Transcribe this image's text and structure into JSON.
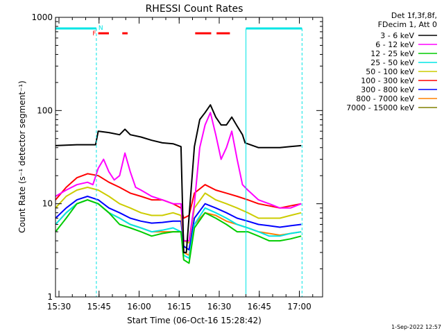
{
  "footer_timestamp": "1-Sep-2022 12:57",
  "legend": {
    "header": [
      "Det 1f,3f,8f,",
      "FDecim 1, Att 0"
    ]
  },
  "flags": {
    "flare_label": "F",
    "night_label": "N"
  },
  "colors": {
    "s1": "#000000",
    "s2": "#ff00ff",
    "s3": "#00cc00",
    "s4": "#00e5e5",
    "s5": "#cccc00",
    "s6": "#ff0000",
    "s7": "#0000ff",
    "s8": "#ff8000",
    "s9": "#808000",
    "flare_bar": "#ff0000",
    "night_bar": "#00e5e5"
  },
  "chart_data": {
    "type": "line",
    "title": "RHESSI Count Rates",
    "xlabel": "Start Time (06-Oct-16 15:28:42)",
    "ylabel": "Count Rate (s⁻¹ detector segment⁻¹)",
    "x_unit": "minutes after 15:28:42",
    "xlim": [
      0,
      100
    ],
    "ylim": [
      1,
      1000
    ],
    "y_scale": "log",
    "grid": false,
    "legend_position": "right",
    "x_ticks": [
      {
        "label": "15:30",
        "value": 1.3
      },
      {
        "label": "15:45",
        "value": 16.3
      },
      {
        "label": "16:00",
        "value": 31.3
      },
      {
        "label": "16:15",
        "value": 46.3
      },
      {
        "label": "16:30",
        "value": 61.3
      },
      {
        "label": "16:45",
        "value": 76.3
      },
      {
        "label": "17:00",
        "value": 91.3
      }
    ],
    "y_ticks": [
      {
        "label": "1",
        "value": 1
      },
      {
        "label": "10",
        "value": 10
      },
      {
        "label": "100",
        "value": 100
      },
      {
        "label": "1000",
        "value": 1000
      }
    ],
    "night_intervals": [
      [
        0,
        15.3
      ],
      [
        71.3,
        92.3
      ]
    ],
    "flare_intervals": [
      [
        16,
        20
      ],
      [
        25,
        27
      ],
      [
        52.3,
        58.3
      ],
      [
        60.3,
        65.3
      ]
    ],
    "series": [
      {
        "name": "3 - 6 keV",
        "color_key": "s1",
        "points": [
          [
            0,
            42
          ],
          [
            8,
            43
          ],
          [
            15,
            43
          ],
          [
            16,
            60
          ],
          [
            20,
            58
          ],
          [
            24,
            55
          ],
          [
            26,
            63
          ],
          [
            28,
            55
          ],
          [
            32,
            52
          ],
          [
            36,
            48
          ],
          [
            40,
            45
          ],
          [
            44,
            44
          ],
          [
            47,
            41
          ],
          [
            48,
            3
          ],
          [
            49,
            3
          ],
          [
            52,
            41
          ],
          [
            54,
            80
          ],
          [
            56,
            95
          ],
          [
            58,
            115
          ],
          [
            60,
            85
          ],
          [
            62,
            70
          ],
          [
            64,
            70
          ],
          [
            66,
            85
          ],
          [
            68,
            68
          ],
          [
            70,
            55
          ],
          [
            71,
            45
          ],
          [
            76,
            40
          ],
          [
            80,
            40
          ],
          [
            84,
            40
          ],
          [
            88,
            41
          ],
          [
            92,
            42
          ]
        ]
      },
      {
        "name": "6 - 12 keV",
        "color_key": "s2",
        "points": [
          [
            0,
            12
          ],
          [
            4,
            14
          ],
          [
            8,
            16
          ],
          [
            12,
            17
          ],
          [
            14,
            16
          ],
          [
            16,
            24
          ],
          [
            18,
            30
          ],
          [
            20,
            22
          ],
          [
            22,
            18
          ],
          [
            24,
            20
          ],
          [
            26,
            35
          ],
          [
            28,
            22
          ],
          [
            30,
            15
          ],
          [
            32,
            14
          ],
          [
            36,
            12
          ],
          [
            40,
            11
          ],
          [
            44,
            10
          ],
          [
            47,
            10
          ],
          [
            48,
            4
          ],
          [
            50,
            4
          ],
          [
            52,
            10
          ],
          [
            54,
            40
          ],
          [
            56,
            70
          ],
          [
            58,
            95
          ],
          [
            60,
            55
          ],
          [
            62,
            30
          ],
          [
            64,
            40
          ],
          [
            66,
            60
          ],
          [
            68,
            30
          ],
          [
            70,
            16
          ],
          [
            72,
            14
          ],
          [
            76,
            11
          ],
          [
            80,
            10
          ],
          [
            84,
            9
          ],
          [
            88,
            9
          ],
          [
            92,
            10
          ]
        ]
      },
      {
        "name": "12 - 25 keV",
        "color_key": "s3",
        "points": [
          [
            0,
            5
          ],
          [
            4,
            7
          ],
          [
            8,
            10
          ],
          [
            12,
            11
          ],
          [
            16,
            10
          ],
          [
            20,
            8
          ],
          [
            24,
            6
          ],
          [
            28,
            5.5
          ],
          [
            32,
            5
          ],
          [
            36,
            4.5
          ],
          [
            40,
            4.8
          ],
          [
            44,
            5
          ],
          [
            47,
            5
          ],
          [
            48,
            2.5
          ],
          [
            50,
            2.3
          ],
          [
            52,
            5.5
          ],
          [
            56,
            8
          ],
          [
            60,
            7
          ],
          [
            64,
            6
          ],
          [
            68,
            5
          ],
          [
            72,
            5
          ],
          [
            76,
            4.5
          ],
          [
            80,
            4
          ],
          [
            84,
            4
          ],
          [
            88,
            4.2
          ],
          [
            92,
            4.5
          ]
        ]
      },
      {
        "name": "25 - 50 keV",
        "color_key": "s4",
        "points": [
          [
            0,
            6
          ],
          [
            4,
            8
          ],
          [
            8,
            10
          ],
          [
            12,
            11
          ],
          [
            16,
            10
          ],
          [
            20,
            8
          ],
          [
            24,
            7
          ],
          [
            28,
            6
          ],
          [
            32,
            5.5
          ],
          [
            36,
            5
          ],
          [
            40,
            5.2
          ],
          [
            44,
            5.5
          ],
          [
            47,
            5
          ],
          [
            48,
            2.8
          ],
          [
            50,
            2.6
          ],
          [
            52,
            6
          ],
          [
            56,
            9
          ],
          [
            60,
            8
          ],
          [
            64,
            7
          ],
          [
            68,
            6
          ],
          [
            72,
            5.5
          ],
          [
            76,
            5
          ],
          [
            80,
            4.5
          ],
          [
            84,
            4.5
          ],
          [
            88,
            4.8
          ],
          [
            92,
            5
          ]
        ]
      },
      {
        "name": "50 - 100 keV",
        "color_key": "s5",
        "points": [
          [
            0,
            9
          ],
          [
            4,
            12
          ],
          [
            8,
            14
          ],
          [
            12,
            15
          ],
          [
            16,
            14
          ],
          [
            20,
            12
          ],
          [
            24,
            10
          ],
          [
            28,
            9
          ],
          [
            32,
            8
          ],
          [
            36,
            7.5
          ],
          [
            40,
            7.5
          ],
          [
            44,
            8
          ],
          [
            47,
            7.5
          ],
          [
            48,
            4
          ],
          [
            50,
            3.8
          ],
          [
            52,
            9
          ],
          [
            56,
            13
          ],
          [
            60,
            11
          ],
          [
            64,
            10
          ],
          [
            68,
            9
          ],
          [
            72,
            8
          ],
          [
            76,
            7
          ],
          [
            80,
            7
          ],
          [
            84,
            7
          ],
          [
            88,
            7.5
          ],
          [
            92,
            8
          ]
        ]
      },
      {
        "name": "100 - 300 keV",
        "color_key": "s6",
        "points": [
          [
            0,
            11
          ],
          [
            4,
            15
          ],
          [
            8,
            19
          ],
          [
            12,
            21
          ],
          [
            16,
            20
          ],
          [
            20,
            17
          ],
          [
            24,
            15
          ],
          [
            28,
            13
          ],
          [
            32,
            12
          ],
          [
            36,
            11
          ],
          [
            40,
            11
          ],
          [
            44,
            10
          ],
          [
            47,
            9
          ],
          [
            48,
            7
          ],
          [
            50,
            7.5
          ],
          [
            52,
            13
          ],
          [
            56,
            16
          ],
          [
            60,
            14
          ],
          [
            64,
            13
          ],
          [
            68,
            12
          ],
          [
            72,
            11
          ],
          [
            76,
            10
          ],
          [
            80,
            9.5
          ],
          [
            84,
            9
          ],
          [
            88,
            9.5
          ],
          [
            92,
            10
          ]
        ]
      },
      {
        "name": "300 - 800 keV",
        "color_key": "s7",
        "points": [
          [
            0,
            7
          ],
          [
            4,
            9
          ],
          [
            8,
            11
          ],
          [
            12,
            12
          ],
          [
            16,
            11
          ],
          [
            20,
            9
          ],
          [
            24,
            8
          ],
          [
            28,
            7
          ],
          [
            32,
            6.5
          ],
          [
            36,
            6.2
          ],
          [
            40,
            6.3
          ],
          [
            44,
            6.5
          ],
          [
            47,
            6.5
          ],
          [
            48,
            3.5
          ],
          [
            50,
            3.2
          ],
          [
            52,
            7
          ],
          [
            56,
            10
          ],
          [
            60,
            9
          ],
          [
            64,
            8
          ],
          [
            68,
            7
          ],
          [
            72,
            6.5
          ],
          [
            76,
            6
          ],
          [
            80,
            5.8
          ],
          [
            84,
            5.6
          ],
          [
            88,
            5.8
          ],
          [
            92,
            6
          ]
        ]
      },
      {
        "name": "800 - 7000 keV",
        "color_key": "s8",
        "points": [
          [
            0,
            6
          ],
          [
            4,
            8
          ],
          [
            8,
            10
          ],
          [
            12,
            11
          ],
          [
            16,
            10
          ],
          [
            20,
            8
          ],
          [
            24,
            7
          ],
          [
            28,
            6
          ],
          [
            32,
            5.5
          ],
          [
            36,
            5
          ],
          [
            40,
            5
          ],
          [
            44,
            5
          ],
          [
            47,
            5
          ],
          [
            48,
            3
          ],
          [
            50,
            2.8
          ],
          [
            52,
            6
          ],
          [
            56,
            8
          ],
          [
            60,
            7.5
          ],
          [
            64,
            6.5
          ],
          [
            68,
            6
          ],
          [
            72,
            5.5
          ],
          [
            76,
            5
          ],
          [
            80,
            4.8
          ],
          [
            84,
            4.6
          ],
          [
            88,
            4.8
          ],
          [
            92,
            5
          ]
        ]
      },
      {
        "name": "7000 - 15000 keV",
        "color_key": "s9",
        "points": []
      }
    ]
  }
}
